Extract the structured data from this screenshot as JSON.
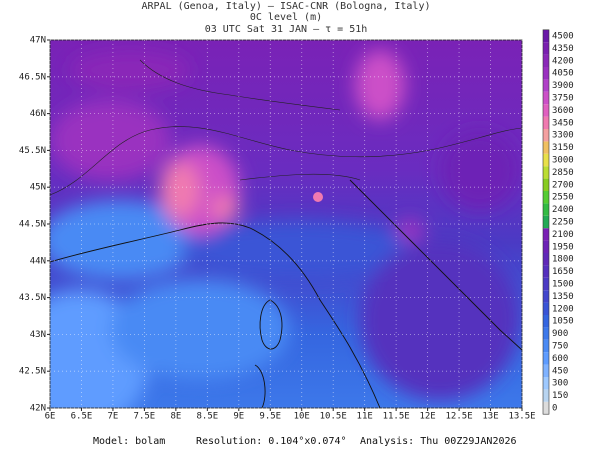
{
  "header": {
    "line1": "ARPAL (Genoa, Italy)  —  ISAC-CNR (Bologna, Italy)",
    "line2": "0C level (m)",
    "line3": "03 UTC Sat 31 JAN  –  τ = 51h"
  },
  "map": {
    "xticks": [
      {
        "value": 6,
        "label": "6E"
      },
      {
        "value": 6.5,
        "label": "6.5E"
      },
      {
        "value": 7,
        "label": "7E"
      },
      {
        "value": 7.5,
        "label": "7.5E"
      },
      {
        "value": 8,
        "label": "8E"
      },
      {
        "value": 8.5,
        "label": "8.5E"
      },
      {
        "value": 9,
        "label": "9E"
      },
      {
        "value": 9.5,
        "label": "9.5E"
      },
      {
        "value": 10,
        "label": "10E"
      },
      {
        "value": 10.5,
        "label": "10.5E"
      },
      {
        "value": 11,
        "label": "11E"
      },
      {
        "value": 11.5,
        "label": "11.5E"
      },
      {
        "value": 12,
        "label": "12E"
      },
      {
        "value": 12.5,
        "label": "12.5E"
      },
      {
        "value": 13,
        "label": "13E"
      },
      {
        "value": 13.5,
        "label": "13.5E"
      }
    ],
    "yticks": [
      {
        "value": 47,
        "label": "47N"
      },
      {
        "value": 46.5,
        "label": "46.5N"
      },
      {
        "value": 46,
        "label": "46N"
      },
      {
        "value": 45.5,
        "label": "45.5N"
      },
      {
        "value": 45,
        "label": "45N"
      },
      {
        "value": 44.5,
        "label": "44.5N"
      },
      {
        "value": 44,
        "label": "44N"
      },
      {
        "value": 43.5,
        "label": "43.5N"
      },
      {
        "value": 43,
        "label": "43N"
      },
      {
        "value": 42.5,
        "label": "42.5N"
      },
      {
        "value": 42,
        "label": "42N"
      }
    ]
  },
  "colorbar": {
    "levels": [
      0,
      150,
      300,
      450,
      600,
      750,
      900,
      1050,
      1200,
      1350,
      1500,
      1650,
      1800,
      1950,
      2100,
      2250,
      2400,
      2550,
      2700,
      2850,
      3000,
      3150,
      3300,
      3450,
      3600,
      3750,
      3900,
      4050,
      4200,
      4350,
      4500
    ],
    "colors": [
      "#dcdcdc",
      "#b8d4f0",
      "#9ec9ff",
      "#7fb2ff",
      "#5e9cff",
      "#4a8af4",
      "#3d78ea",
      "#3566e0",
      "#3a55d6",
      "#4246cc",
      "#4b3ac4",
      "#5530be",
      "#6028b8",
      "#6d22b6",
      "#7a20b4",
      "#22aa55",
      "#33bb44",
      "#55cc33",
      "#88cc22",
      "#bbdd33",
      "#e8e04a",
      "#f0c060",
      "#f4a0a0",
      "#f07ab0",
      "#e060c0",
      "#cc50c8",
      "#b040c8",
      "#9a30c0",
      "#8a28b8",
      "#7a20b0",
      "#6a18a8"
    ]
  },
  "footer": {
    "model": "Model: bolam",
    "resolution": "Resolution: 0.104°x0.074°",
    "analysis": "Analysis: Thu 00Z29JAN2026"
  }
}
